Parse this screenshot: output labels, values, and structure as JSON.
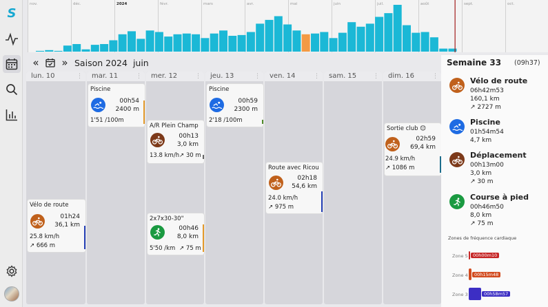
{
  "sidebar": {
    "items": [
      {
        "icon": "logo-icon",
        "label": "S"
      },
      {
        "icon": "activity-icon"
      },
      {
        "icon": "calendar-icon"
      },
      {
        "icon": "search-icon"
      },
      {
        "icon": "stats-icon"
      },
      {
        "icon": "settings-icon"
      },
      {
        "icon": "avatar"
      }
    ]
  },
  "top_chart": {
    "months": [
      "nov.",
      "déc.",
      "2024",
      "févr.",
      "mars",
      "avr.",
      "mai",
      "juin",
      "juil.",
      "août",
      "sept.",
      "oct."
    ],
    "bar_color": "#1bb8d6",
    "highlight_color": "#f39a45",
    "cursor_color": "#a21b1b",
    "values": [
      1,
      2,
      1,
      8,
      10,
      3,
      9,
      10,
      15,
      23,
      27,
      17,
      28,
      26,
      20,
      23,
      24,
      23,
      18,
      24,
      28,
      21,
      22,
      26,
      37,
      42,
      47,
      36,
      28,
      23,
      24,
      26,
      18,
      25,
      39,
      33,
      37,
      46,
      51,
      62,
      35,
      25,
      26,
      19,
      4,
      4
    ],
    "highlight_index": 29
  },
  "toolbar": {
    "prev": "«",
    "calendar_icon": "calendar-check-icon",
    "next": "»",
    "season": "Saison 2024",
    "month": "juin"
  },
  "days": [
    {
      "label": "lun. 10",
      "dots": "⋮"
    },
    {
      "label": "mar. 11",
      "dots": "⋮"
    },
    {
      "label": "mer. 12",
      "dots": "⋮"
    },
    {
      "label": "jeu. 13",
      "dots": "⋮"
    },
    {
      "label": "ven. 14",
      "dots": "⋮"
    },
    {
      "label": "sam. 15",
      "dots": "⋮"
    },
    {
      "label": "dim. 16",
      "dots": "⋮"
    }
  ],
  "activities": {
    "lun_bike": {
      "title": "Vélo de route",
      "duration": "01h24",
      "distance": "36,1 km",
      "pace": "25.8 km/h",
      "elevation": "↗ 666 m",
      "color": "#c0611c",
      "bar": "#2540b7"
    },
    "mar_swim": {
      "title": "Piscine",
      "duration": "00h54",
      "distance": "2400 m",
      "pace": "1'51 /100m",
      "color": "#1e6be3",
      "bar": "#e59a2b"
    },
    "mer_commute": {
      "title": "A/R Plein Champ",
      "duration": "00h13",
      "distance": "3,0 km",
      "pace": "13.8 km/h",
      "elevation": "↗ 30 m",
      "color": "#7d3a1a",
      "bar": "#666666"
    },
    "mer_run": {
      "title": "2x7x30-30\"",
      "duration": "00h46",
      "distance": "8,0 km",
      "pace": "5'50 /km",
      "elevation": "↗ 75 m",
      "color": "#1a9a41",
      "bar": "#e59a2b"
    },
    "jeu_swim": {
      "title": "Piscine",
      "duration": "00h59",
      "distance": "2300 m",
      "pace": "2'18 /100m",
      "color": "#1e6be3",
      "bar": "#4f8a2a"
    },
    "ven_bike": {
      "title": "Route avec Ricou",
      "duration": "02h18",
      "distance": "54,6 km",
      "pace": "24.0 km/h",
      "elevation": "↗ 975 m",
      "color": "#c0611c",
      "bar": "#2540b7"
    },
    "dim_bike": {
      "title": "Sortie club 😊",
      "duration": "02h59",
      "distance": "69,4 km",
      "pace": "24.9 km/h",
      "elevation": "↗ 1086 m",
      "color": "#c0611c",
      "bar": "#1d6d8c"
    }
  },
  "summary": {
    "week": "Semaine 33",
    "week_duration": "(09h37)",
    "items": [
      {
        "name": "Vélo de route",
        "duration": "06h42m53",
        "distance": "160,1 km",
        "elevation": "↗ 2727 m",
        "color": "#c0611c"
      },
      {
        "name": "Piscine",
        "duration": "01h54m54",
        "distance": "4,7 km",
        "color": "#1e6be3"
      },
      {
        "name": "Déplacement",
        "duration": "00h13m00",
        "distance": "3,0 km",
        "elevation": "↗ 30 m",
        "color": "#7d3a1a"
      },
      {
        "name": "Course à pied",
        "duration": "00h46m50",
        "distance": "8,0 km",
        "elevation": "↗ 75 m",
        "color": "#1a9a41"
      }
    ],
    "zones_title": "Zones de fréquence cardiaque",
    "zones": [
      {
        "label": "Zone 5",
        "value": "00h00m10",
        "color": "#c62626"
      },
      {
        "label": "Zone 4",
        "value": "00h15m48",
        "color": "#d24b1f"
      },
      {
        "label": "Zone 3",
        "value": "00h58m57",
        "color": "#3c2ec4"
      }
    ]
  }
}
